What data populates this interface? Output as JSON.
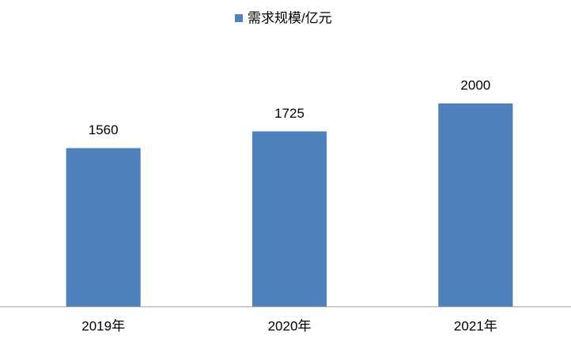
{
  "chart_data": {
    "type": "bar",
    "categories": [
      "2019年",
      "2020年",
      "2021年"
    ],
    "series": [
      {
        "name": "需求规模/亿元",
        "color": "#4f81bd",
        "values": [
          1560,
          1725,
          2000
        ]
      }
    ],
    "legend": "top"
  }
}
